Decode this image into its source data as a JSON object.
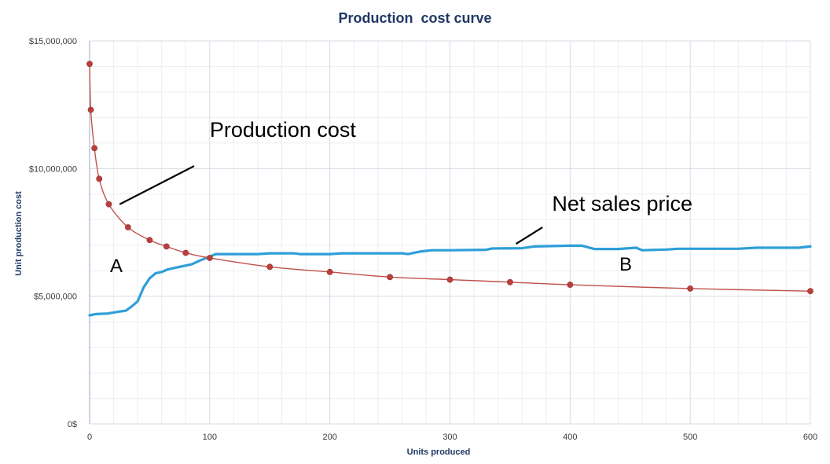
{
  "chart_data": {
    "type": "line",
    "title": "Production  cost curve",
    "xlabel": "Units produced",
    "ylabel": "Unit production cost",
    "xlim": [
      0,
      600
    ],
    "ylim": [
      0,
      15000000
    ],
    "x_ticks": [
      0,
      100,
      200,
      300,
      400,
      500,
      600
    ],
    "x_tick_labels": [
      "0",
      "100",
      "200",
      "300",
      "400",
      "500",
      "600"
    ],
    "y_ticks": [
      0,
      5000000,
      10000000,
      15000000
    ],
    "y_tick_labels": [
      "0$",
      "$5,000,000",
      "$10,000,000",
      "$15,000,000"
    ],
    "grid": true,
    "series": [
      {
        "key": "production_cost",
        "color": "#C0504D",
        "marker": "circle",
        "points": [
          [
            0,
            14100000
          ],
          [
            1,
            12300000
          ],
          [
            4,
            10800000
          ],
          [
            8,
            9600000
          ],
          [
            16,
            8600000
          ],
          [
            32,
            7700000
          ],
          [
            50,
            7200000
          ],
          [
            64,
            6950000
          ],
          [
            80,
            6700000
          ],
          [
            100,
            6500000
          ],
          [
            150,
            6150000
          ],
          [
            200,
            5950000
          ],
          [
            250,
            5750000
          ],
          [
            300,
            5650000
          ],
          [
            350,
            5550000
          ],
          [
            400,
            5450000
          ],
          [
            500,
            5300000
          ],
          [
            600,
            5200000
          ]
        ]
      },
      {
        "key": "net_sales_price",
        "color": "#2E9FD8",
        "marker": "none",
        "points": [
          [
            0,
            4250000
          ],
          [
            5,
            4300000
          ],
          [
            15,
            4320000
          ],
          [
            25,
            4400000
          ],
          [
            30,
            4430000
          ],
          [
            35,
            4600000
          ],
          [
            40,
            4800000
          ],
          [
            45,
            5350000
          ],
          [
            50,
            5700000
          ],
          [
            55,
            5900000
          ],
          [
            60,
            5950000
          ],
          [
            65,
            6050000
          ],
          [
            75,
            6150000
          ],
          [
            85,
            6250000
          ],
          [
            92,
            6400000
          ],
          [
            100,
            6550000
          ],
          [
            105,
            6650000
          ],
          [
            120,
            6650000
          ],
          [
            140,
            6650000
          ],
          [
            150,
            6680000
          ],
          [
            170,
            6680000
          ],
          [
            175,
            6650000
          ],
          [
            200,
            6650000
          ],
          [
            210,
            6680000
          ],
          [
            260,
            6680000
          ],
          [
            265,
            6650000
          ],
          [
            275,
            6750000
          ],
          [
            285,
            6800000
          ],
          [
            300,
            6800000
          ],
          [
            330,
            6820000
          ],
          [
            335,
            6870000
          ],
          [
            360,
            6880000
          ],
          [
            370,
            6950000
          ],
          [
            400,
            6980000
          ],
          [
            410,
            6980000
          ],
          [
            420,
            6850000
          ],
          [
            440,
            6850000
          ],
          [
            455,
            6900000
          ],
          [
            460,
            6800000
          ],
          [
            480,
            6830000
          ],
          [
            490,
            6860000
          ],
          [
            540,
            6860000
          ],
          [
            555,
            6900000
          ],
          [
            590,
            6900000
          ],
          [
            600,
            6950000
          ]
        ]
      }
    ],
    "annotations": [
      {
        "text": "Production cost",
        "kind": "label",
        "x": 100,
        "y": 11250000,
        "leader": [
          [
            87,
            10100000
          ],
          [
            25,
            8600000
          ]
        ]
      },
      {
        "text": "Net sales price",
        "kind": "label",
        "x": 385,
        "y": 8350000,
        "leader": [
          [
            377,
            7700000
          ],
          [
            355,
            7050000
          ]
        ]
      },
      {
        "text": "A",
        "kind": "letter",
        "x": 17,
        "y": 5950000
      },
      {
        "text": "B",
        "kind": "letter",
        "x": 441,
        "y": 6000000
      }
    ]
  }
}
